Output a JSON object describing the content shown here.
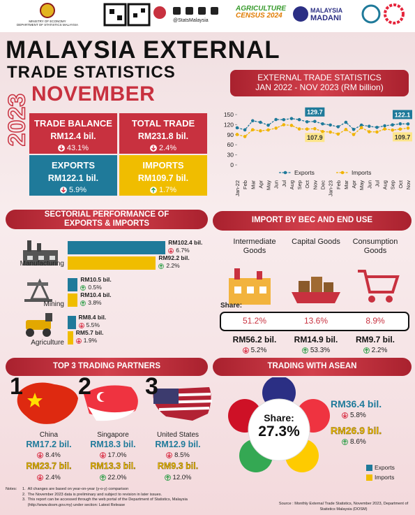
{
  "header": {
    "ministry": "MINISTRY OF ECONOMY",
    "department": "DEPARTMENT OF STATISTICS MALAYSIA",
    "social": "@StatsMalaysia",
    "census_1": "AGRICULTURE",
    "census_2": "CENSUS 2024",
    "madani_1": "MALAYSIA",
    "madani_2": "MADANI"
  },
  "title": {
    "line1": "MALAYSIA EXTERNAL",
    "line2": "TRADE STATISTICS",
    "year": "2023",
    "month": "NOVEMBER"
  },
  "summary": [
    {
      "label": "TRADE BALANCE",
      "value": "RM12.4 bil.",
      "change": "43.1%",
      "direction": "down"
    },
    {
      "label": "TOTAL TRADE",
      "value": "RM231.8 bil.",
      "change": "2.4%",
      "direction": "down"
    },
    {
      "label": "EXPORTS",
      "value": "RM122.1 bil.",
      "change": "5.9%",
      "direction": "down"
    },
    {
      "label": "IMPORTS",
      "value": "RM109.7 bil.",
      "change": "1.7%",
      "direction": "up"
    }
  ],
  "chart_data": {
    "type": "line",
    "title": "EXTERNAL TRADE STATISTICS",
    "subtitle": "JAN 2022 - NOV 2023 (RM billion)",
    "categories": [
      "Jan-22",
      "Feb",
      "Mar",
      "Apr",
      "May",
      "Jun",
      "Jul",
      "Aug",
      "Sep",
      "Oct",
      "Nov",
      "Dec",
      "Jan-23",
      "Feb",
      "Mar",
      "Apr",
      "May",
      "Jun",
      "Jul",
      "Aug",
      "Sep",
      "Oct",
      "Nov"
    ],
    "series": [
      {
        "name": "Exports",
        "color": "#1f7a9a",
        "values": [
          110.7,
          104.5,
          131.6,
          127.1,
          118.4,
          135.3,
          134.9,
          138.2,
          135.0,
          128.6,
          129.7,
          122.4,
          118.9,
          113.7,
          127.1,
          105.8,
          118.7,
          115.2,
          111.9,
          116.6,
          119.4,
          122.5,
          122.1
        ]
      },
      {
        "name": "Imports",
        "color": "#f0b400",
        "values": [
          90.7,
          84.6,
          104.9,
          101.6,
          104.2,
          109.6,
          119.8,
          117.8,
          107.2,
          106.9,
          107.9,
          99.5,
          97.8,
          91.8,
          105.5,
          90.6,
          111.0,
          98.9,
          98.2,
          107.1,
          103.8,
          106.7,
          109.7
        ]
      }
    ],
    "ylim": [
      0,
      150
    ],
    "yticks": [
      0,
      30,
      60,
      90,
      120,
      150
    ],
    "legend": "bottom"
  },
  "sectors": {
    "title": "SECTORIAL PERFORMANCE OF EXPORTS & IMPORTS",
    "items": [
      {
        "name": "Manufacturing",
        "exports": {
          "value": 102.4,
          "label": "RM102.4 bil.",
          "change": "6.7%",
          "direction": "down"
        },
        "imports": {
          "value": 92.2,
          "label": "RM92.2 bil.",
          "change": "2.2%",
          "direction": "up"
        }
      },
      {
        "name": "Mining",
        "exports": {
          "value": 10.5,
          "label": "RM10.5 bil.",
          "change": "0.5%",
          "direction": "up"
        },
        "imports": {
          "value": 10.4,
          "label": "RM10.4 bil.",
          "change": "3.8%",
          "direction": "up"
        }
      },
      {
        "name": "Agriculture",
        "exports": {
          "value": 8.4,
          "label": "RM8.4 bil.",
          "change": "5.5%",
          "direction": "down"
        },
        "imports": {
          "value": 5.7,
          "label": "RM5.7 bil.",
          "change": "1.9%",
          "direction": "down"
        }
      }
    ]
  },
  "bec": {
    "title": "IMPORT BY BEC AND END USE",
    "share_label": "Share:",
    "items": [
      {
        "name": "Intermediate Goods",
        "share": "51.2%",
        "value": "RM56.2 bil.",
        "change": "5.2%",
        "direction": "down"
      },
      {
        "name": "Capital Goods",
        "share": "13.6%",
        "value": "RM14.9 bil.",
        "change": "53.3%",
        "direction": "up"
      },
      {
        "name": "Consumption Goods",
        "share": "8.9%",
        "value": "RM9.7 bil.",
        "change": "2.2%",
        "direction": "up"
      }
    ]
  },
  "partners": {
    "title": "TOP 3 TRADING PARTNERS",
    "items": [
      {
        "rank": "1",
        "name": "China",
        "exports": {
          "value": "RM17.2 bil.",
          "change": "8.4%",
          "direction": "down"
        },
        "imports": {
          "value": "RM23.7 bil.",
          "change": "2.4%",
          "direction": "down"
        }
      },
      {
        "rank": "2",
        "name": "Singapore",
        "exports": {
          "value": "RM18.3 bil.",
          "change": "17.0%",
          "direction": "down"
        },
        "imports": {
          "value": "RM13.3 bil.",
          "change": "22.0%",
          "direction": "up"
        }
      },
      {
        "rank": "3",
        "name": "United States",
        "exports": {
          "value": "RM12.9 bil.",
          "change": "8.5%",
          "direction": "down"
        },
        "imports": {
          "value": "RM9.3 bil.",
          "change": "12.0%",
          "direction": "up"
        }
      }
    ]
  },
  "asean": {
    "title": "TRADING WITH ASEAN",
    "share_label": "Share:",
    "share": "27.3%",
    "exports": {
      "value": "RM36.4 bil.",
      "change": "5.8%",
      "direction": "down"
    },
    "imports": {
      "value": "RM26.9 bil.",
      "change": "8.6%",
      "direction": "up"
    },
    "legend": [
      "Exports",
      "Imports"
    ]
  },
  "notes": {
    "label": "Notes:",
    "items": [
      {
        "number": "1.",
        "text": "All changes are based on year-on-year (y-o-y) comparison"
      },
      {
        "number": "2.",
        "text": "The November 2023 data is preliminary and subject to revision in later issues."
      },
      {
        "number": "3.",
        "text": "This report can be accessed through the web portal of the Department of Statistics, Malaysia (http://www.dosm.gov.my) under section: Latest Release"
      }
    ]
  },
  "source": "Source : Monthly External Trade Statistics, November 2023, Department of Statistics Malaysia (DOSM)"
}
